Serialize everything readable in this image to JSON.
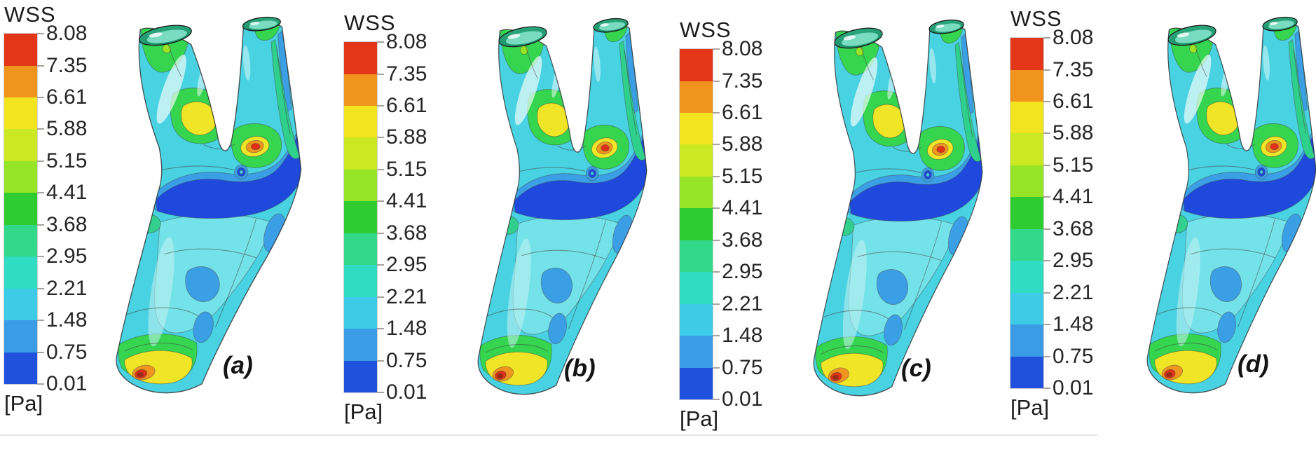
{
  "figure": {
    "legend_title": "WSS",
    "unit_label": "[Pa]",
    "tick_values": [
      "8.08",
      "7.35",
      "6.61",
      "5.88",
      "5.15",
      "4.41",
      "3.68",
      "2.95",
      "2.21",
      "1.48",
      "0.75",
      "0.01"
    ],
    "band_colors": [
      "#e33517",
      "#f0941e",
      "#f2e51f",
      "#cbe922",
      "#96e426",
      "#2ecc30",
      "#33d98b",
      "#30dcc3",
      "#3dcbe8",
      "#3b9ce6",
      "#2051dc"
    ],
    "panels": [
      {
        "label": "(a)"
      },
      {
        "label": "(b)"
      },
      {
        "label": "(c)"
      },
      {
        "label": "(d)"
      }
    ]
  },
  "chart_data": {
    "type": "heatmap",
    "title": "WSS",
    "unit": "Pa",
    "value_range": [
      0.01,
      8.08
    ],
    "colorbar_tick_values": [
      8.08,
      7.35,
      6.61,
      5.88,
      5.15,
      4.41,
      3.68,
      2.95,
      2.21,
      1.48,
      0.75,
      0.01
    ],
    "colorbar_band_colors_top_to_bottom": [
      "#e33517",
      "#f0941e",
      "#f2e51f",
      "#cbe922",
      "#96e426",
      "#2ecc30",
      "#33d98b",
      "#30dcc3",
      "#3dcbe8",
      "#3b9ce6",
      "#2051dc"
    ],
    "legend_position": "left-of-each-panel",
    "panels": [
      {
        "label": "(a)"
      },
      {
        "label": "(b)"
      },
      {
        "label": "(c)"
      },
      {
        "label": "(d)"
      }
    ],
    "subject": "Wall shear stress contour maps rendered on a carotid artery bifurcation surface; four cases share one identical color scale; high WSS at bifurcation apex and inlet rim, low WSS (dark blue) across the carotid bulb"
  }
}
